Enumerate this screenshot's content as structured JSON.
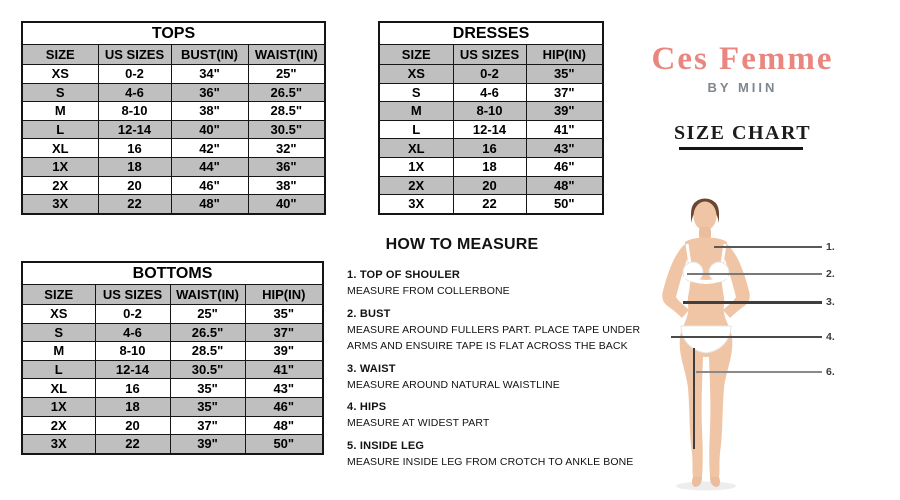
{
  "brand": {
    "name": "Ces Femme",
    "byline": "BY MIIN",
    "chart_title": "SIZE CHART",
    "name_color": "#e9867f",
    "byline_color": "#7f878d"
  },
  "colors": {
    "table_header_gray": "#bfbfbf",
    "table_border": "#151515",
    "text_black": "#121212"
  },
  "tables": {
    "tops": {
      "title": "TOPS",
      "columns": [
        "SIZE",
        "US SIZES",
        "BUST(IN)",
        "WAIST(IN)"
      ],
      "rows": [
        [
          "XS",
          "0-2",
          "34\"",
          "25\""
        ],
        [
          "S",
          "4-6",
          "36\"",
          "26.5\""
        ],
        [
          "M",
          "8-10",
          "38\"",
          "28.5\""
        ],
        [
          "L",
          "12-14",
          "40\"",
          "30.5\""
        ],
        [
          "XL",
          "16",
          "42\"",
          "32\""
        ],
        [
          "1X",
          "18",
          "44\"",
          "36\""
        ],
        [
          "2X",
          "20",
          "46\"",
          "38\""
        ],
        [
          "3X",
          "22",
          "48\"",
          "40\""
        ]
      ]
    },
    "dresses": {
      "title": "DRESSES",
      "columns": [
        "SIZE",
        "US SIZES",
        "HIP(IN)"
      ],
      "rows": [
        [
          "XS",
          "0-2",
          "35\""
        ],
        [
          "S",
          "4-6",
          "37\""
        ],
        [
          "M",
          "8-10",
          "39\""
        ],
        [
          "L",
          "12-14",
          "41\""
        ],
        [
          "XL",
          "16",
          "43\""
        ],
        [
          "1X",
          "18",
          "46\""
        ],
        [
          "2X",
          "20",
          "48\""
        ],
        [
          "3X",
          "22",
          "50\""
        ]
      ]
    },
    "bottoms": {
      "title": "BOTTOMS",
      "columns": [
        "SIZE",
        "US SIZES",
        "WAIST(IN)",
        "HIP(IN)"
      ],
      "rows": [
        [
          "XS",
          "0-2",
          "25\"",
          "35\""
        ],
        [
          "S",
          "4-6",
          "26.5\"",
          "37\""
        ],
        [
          "M",
          "8-10",
          "28.5\"",
          "39\""
        ],
        [
          "L",
          "12-14",
          "30.5\"",
          "41\""
        ],
        [
          "XL",
          "16",
          "35\"",
          "43\""
        ],
        [
          "1X",
          "18",
          "35\"",
          "46\""
        ],
        [
          "2X",
          "20",
          "37\"",
          "48\""
        ],
        [
          "3X",
          "22",
          "39\"",
          "50\""
        ]
      ]
    }
  },
  "measure": {
    "title": "HOW TO MEASURE",
    "items": [
      {
        "label": "1. TOP OF SHOULER",
        "desc": "MEASURE FROM COLLERBONE"
      },
      {
        "label": "2. BUST",
        "desc": "MEASURE AROUND FULLERS PART. PLACE TAPE UNDER ARMS AND ENSUIRE TAPE IS FLAT ACROSS THE BACK"
      },
      {
        "label": "3. WAIST",
        "desc": "MEASURE AROUND NATURAL WAISTLINE"
      },
      {
        "label": "4. HIPS",
        "desc": "MEASURE AT WIDEST PART"
      },
      {
        "label": "5. INSIDE LEG",
        "desc": "MEASURE INSIDE LEG FROM CROTCH TO ANKLE BONE"
      }
    ]
  },
  "figure": {
    "labels": [
      "1.",
      "2.",
      "3.",
      "4.",
      "6."
    ]
  }
}
